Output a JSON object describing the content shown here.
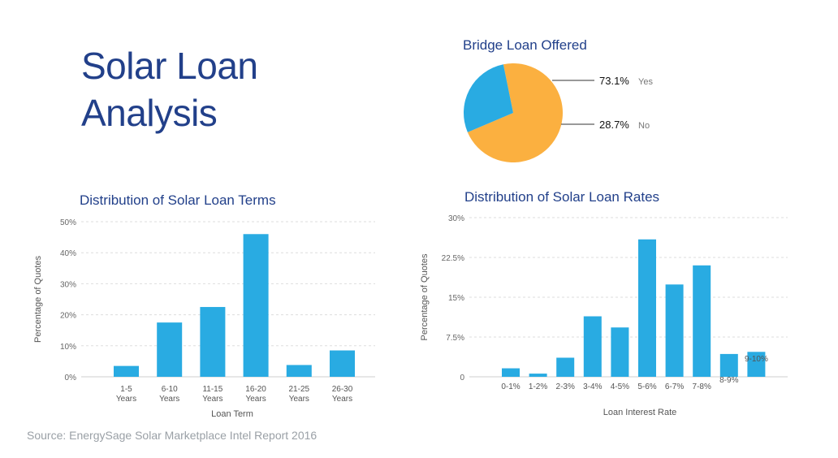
{
  "header": {
    "title": "Solar Loan Analysis",
    "source": "Source: EnergySage Solar Marketplace Intel Report 2016"
  },
  "colors": {
    "title": "#22408a",
    "bar": "#29abe2",
    "pie_yes": "#fbb040",
    "pie_no": "#29abe2",
    "grid": "#dddddd"
  },
  "chart_data": [
    {
      "id": "bridge",
      "type": "pie",
      "title": "Bridge Loan Offered",
      "slices": [
        {
          "label": "Yes",
          "display": "73.1%",
          "value": 73.1,
          "color": "#fbb040"
        },
        {
          "label": "No",
          "display": "28.7%",
          "value": 28.7,
          "color": "#29abe2"
        }
      ]
    },
    {
      "id": "terms",
      "type": "bar",
      "title": "Distribution of Solar Loan Terms",
      "xlabel": "Loan Term",
      "ylabel": "Percentage of Quotes",
      "categories": [
        [
          "1-5",
          "Years"
        ],
        [
          "6-10",
          "Years"
        ],
        [
          "11-15",
          "Years"
        ],
        [
          "16-20",
          "Years"
        ],
        [
          "21-25",
          "Years"
        ],
        [
          "26-30",
          "Years"
        ]
      ],
      "values": [
        3.5,
        17.5,
        22.5,
        46,
        3.8,
        8.5
      ],
      "ylim": [
        0,
        50
      ],
      "yticks": [
        0,
        10,
        20,
        30,
        40,
        50
      ],
      "ytick_labels": [
        "0%",
        "10%",
        "20%",
        "30%",
        "40%",
        "50%"
      ],
      "grid": true
    },
    {
      "id": "rates",
      "type": "bar",
      "title": "Distribution of Solar Loan Rates",
      "xlabel": "Loan Interest Rate",
      "ylabel": "Percentage of Quotes",
      "categories": [
        "0-1%",
        "1-2%",
        "2-3%",
        "3-4%",
        "4-5%",
        "5-6%",
        "6-7%",
        "7-8%",
        "8-9%",
        "9-10%"
      ],
      "values": [
        1.6,
        0.6,
        3.6,
        11.4,
        9.3,
        25.9,
        17.4,
        21,
        4.3,
        4.7
      ],
      "ylim": [
        0,
        30
      ],
      "yticks": [
        0,
        7.5,
        15,
        22.5,
        30
      ],
      "ytick_labels": [
        "0",
        "7.5%",
        "15%",
        "22.5%",
        "30%"
      ],
      "grid": true
    }
  ]
}
